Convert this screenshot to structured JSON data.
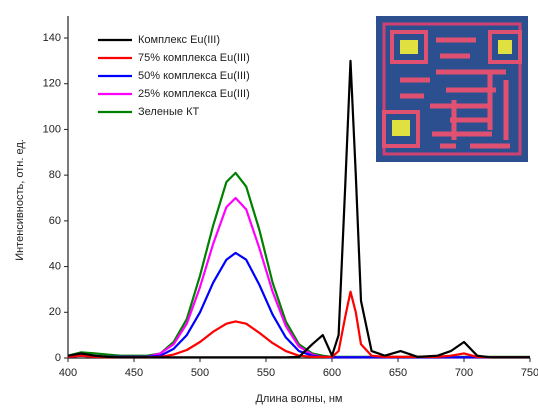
{
  "chart_data": {
    "type": "line",
    "x_label": "Длина волны, нм",
    "y_label": "Интенсивность, отн. ед.",
    "x": [
      400,
      410,
      420,
      430,
      440,
      450,
      460,
      470,
      480,
      490,
      500,
      510,
      520,
      527,
      535,
      545,
      555,
      565,
      575,
      585,
      593,
      600,
      605,
      610,
      614,
      618,
      622,
      630,
      640,
      652,
      665,
      680,
      690,
      700,
      710,
      720,
      730,
      740,
      750
    ],
    "series": [
      {
        "name": "Комплекс Eu(III)",
        "color": "#000000",
        "values": [
          1,
          2,
          1,
          0.5,
          0.3,
          0.3,
          0.3,
          0.3,
          0.3,
          0.3,
          0.3,
          0.3,
          0.3,
          0.3,
          0.3,
          0.3,
          0.3,
          0.3,
          0.5,
          6,
          10,
          1,
          10,
          75,
          130,
          80,
          25,
          3,
          1,
          3,
          0.5,
          1,
          3,
          7,
          1,
          0.3,
          0.3,
          0.3,
          0.3
        ]
      },
      {
        "name": "75% комплекса Eu(III)",
        "color": "#ff0000",
        "values": [
          0.5,
          1,
          0.5,
          0.3,
          0.3,
          0.3,
          0.3,
          0.5,
          1.5,
          3.5,
          7,
          11.5,
          15,
          16,
          15,
          11,
          6.5,
          3,
          1,
          0.5,
          0.5,
          0.5,
          3,
          18,
          29,
          20,
          6,
          1,
          0.5,
          0.5,
          0.5,
          0.5,
          1,
          2,
          0.5,
          0.3,
          0.3,
          0.3,
          0.3
        ]
      },
      {
        "name": "50% комплекса Eu(III)",
        "color": "#0000ff",
        "values": [
          0.5,
          1,
          0.5,
          0.5,
          0.5,
          0.5,
          0.5,
          1,
          4,
          10,
          20,
          33,
          43,
          46,
          43,
          32,
          19,
          9,
          3,
          1,
          0.5,
          0.3,
          0.3,
          0.3,
          0.3,
          0.3,
          0.3,
          0.3,
          0.3,
          0.3,
          0.3,
          0.3,
          0.3,
          0.3,
          0.3,
          0.3,
          0.3,
          0.3,
          0.3
        ]
      },
      {
        "name": "25% комплекса Eu(III)",
        "color": "#ff00ff",
        "values": [
          0.5,
          1.5,
          1,
          0.5,
          0.5,
          0.5,
          0.5,
          2,
          6,
          15,
          31,
          50,
          66,
          70,
          65,
          48,
          29,
          14,
          5,
          1.5,
          0.5,
          0.3,
          0.3,
          0.3,
          0.3,
          0.3,
          0.3,
          0.3,
          0.3,
          0.3,
          0.3,
          0.3,
          0.3,
          0.3,
          0.3,
          0.3,
          0.3,
          0.3,
          0.3
        ]
      },
      {
        "name": "Зеленые КТ",
        "color": "#008000",
        "values": [
          1,
          2.5,
          2,
          1.5,
          1,
          1,
          1,
          2,
          7,
          17,
          36,
          58,
          77,
          81,
          75,
          56,
          33,
          16,
          6,
          2,
          1,
          0.5,
          0.5,
          0.5,
          0.5,
          0.5,
          0.5,
          0.5,
          0.5,
          0.5,
          0.5,
          0.5,
          0.5,
          0.5,
          0.5,
          0.5,
          0.5,
          0.5,
          0.5
        ]
      }
    ],
    "xlim": [
      400,
      750
    ],
    "xticks": [
      400,
      450,
      500,
      550,
      600,
      650,
      700,
      750
    ],
    "ylim": [
      0,
      140
    ],
    "yticks": [
      0,
      20,
      40,
      60,
      80,
      100,
      120,
      140
    ],
    "legend": "upper left"
  }
}
